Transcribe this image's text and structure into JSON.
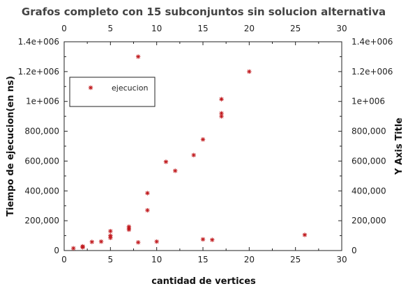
{
  "chart_data": {
    "type": "scatter",
    "title": "Grafos completo con 15 subconjuntos sin solucion alternativa",
    "xlabel": "cantidad de vertices",
    "ylabel": "Tiempo de ejecucion(en ns)",
    "y2label": "Y Axis Title",
    "xlim": [
      0,
      30
    ],
    "ylim": [
      0,
      1400000
    ],
    "x_ticks": [
      "0",
      "5",
      "10",
      "15",
      "20",
      "25",
      "30"
    ],
    "x_tick_values": [
      0,
      5,
      10,
      15,
      20,
      25,
      30
    ],
    "y_ticks": [
      "0",
      "200,000",
      "400,000",
      "600,000",
      "800,000",
      "1e+006",
      "1.2e+006",
      "1.4e+006"
    ],
    "y_tick_values": [
      0,
      200000,
      400000,
      600000,
      800000,
      1000000,
      1200000,
      1400000
    ],
    "grid": false,
    "legend_position": "top-left",
    "marker_color": "#c0181c",
    "series": [
      {
        "name": "ejecucion",
        "points": [
          [
            1,
            15000
          ],
          [
            2,
            22000
          ],
          [
            2,
            28000
          ],
          [
            3,
            58000
          ],
          [
            4,
            60000
          ],
          [
            5,
            85000
          ],
          [
            5,
            100000
          ],
          [
            5,
            130000
          ],
          [
            7,
            140000
          ],
          [
            7,
            150000
          ],
          [
            7,
            160000
          ],
          [
            8,
            55000
          ],
          [
            8,
            1300000
          ],
          [
            9,
            270000
          ],
          [
            9,
            385000
          ],
          [
            10,
            60000
          ],
          [
            11,
            595000
          ],
          [
            12,
            535000
          ],
          [
            14,
            640000
          ],
          [
            15,
            75000
          ],
          [
            15,
            745000
          ],
          [
            16,
            72000
          ],
          [
            17,
            900000
          ],
          [
            17,
            920000
          ],
          [
            17,
            1015000
          ],
          [
            20,
            1200000
          ],
          [
            26,
            105000
          ]
        ]
      }
    ]
  }
}
